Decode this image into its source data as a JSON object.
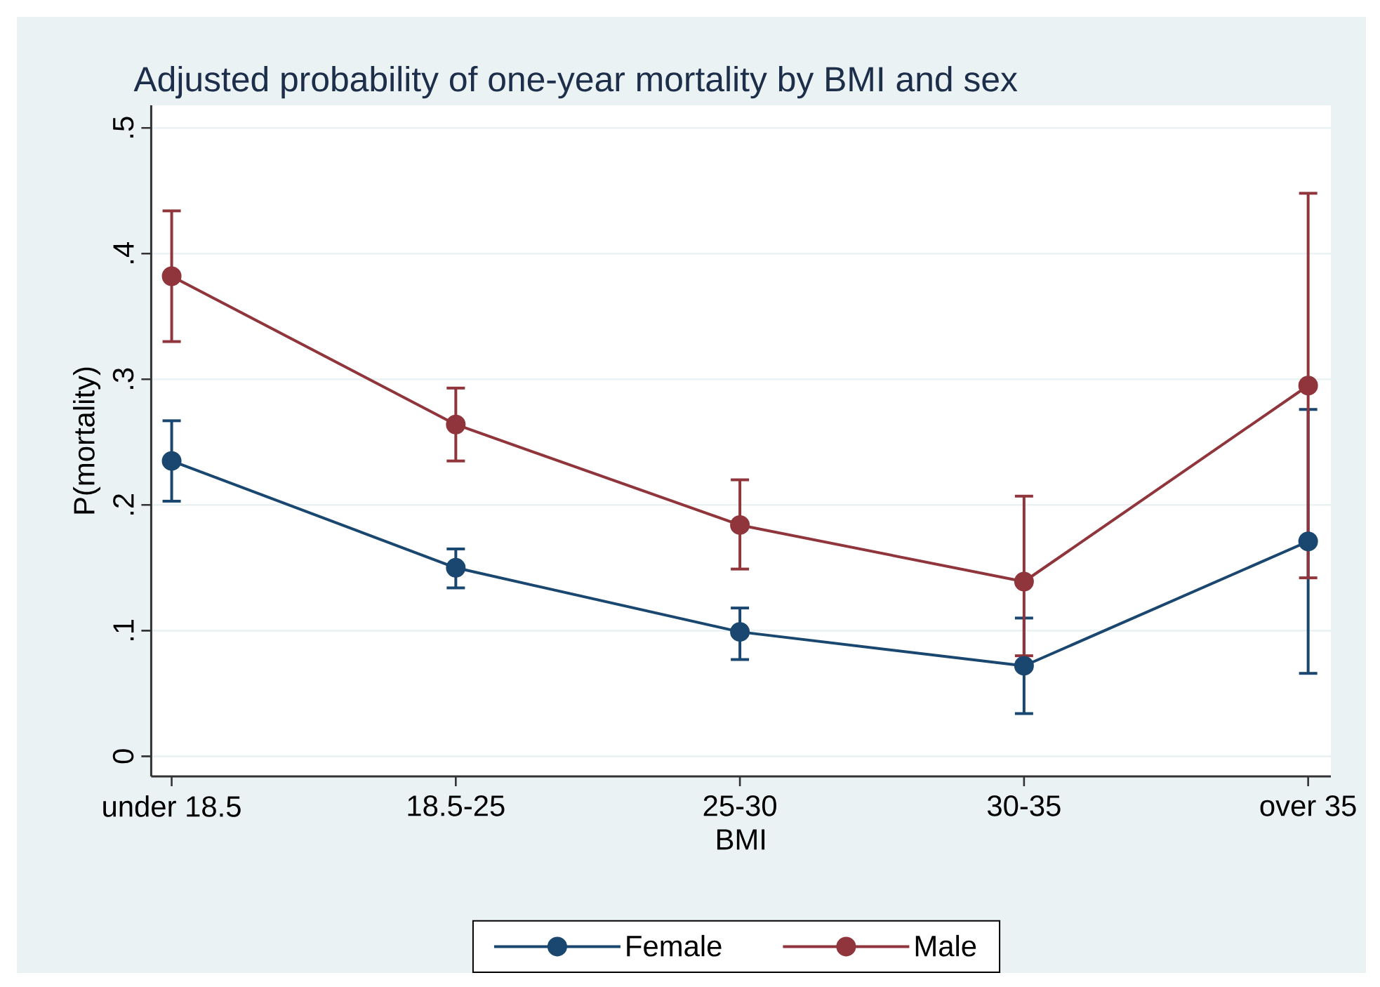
{
  "chart_data": {
    "type": "line",
    "title": "Adjusted probability of one-year mortality by BMI and sex",
    "xlabel": "BMI",
    "ylabel": "P(mortality)",
    "categories": [
      "under 18.5",
      "18.5-25",
      "25-30",
      "30-35",
      "over 35"
    ],
    "series": [
      {
        "name": "Female",
        "color": "#1a476f",
        "values": [
          0.235,
          0.15,
          0.099,
          0.072,
          0.171
        ],
        "errors": [
          [
            0.203,
            0.267
          ],
          [
            0.134,
            0.165
          ],
          [
            0.077,
            0.118
          ],
          [
            0.034,
            0.11
          ],
          [
            0.066,
            0.276
          ]
        ]
      },
      {
        "name": "Male",
        "color": "#90353b",
        "values": [
          0.382,
          0.264,
          0.184,
          0.139,
          0.295
        ],
        "errors": [
          [
            0.33,
            0.434
          ],
          [
            0.235,
            0.293
          ],
          [
            0.149,
            0.22
          ],
          [
            0.08,
            0.207
          ],
          [
            0.142,
            0.448
          ]
        ]
      }
    ],
    "ylim": [
      -0.016,
      0.518
    ],
    "yticks": [
      {
        "value": 0,
        "label": "0"
      },
      {
        "value": 0.1,
        "label": ".1"
      },
      {
        "value": 0.2,
        "label": ".2"
      },
      {
        "value": 0.3,
        "label": ".3"
      },
      {
        "value": 0.4,
        "label": ".4"
      },
      {
        "value": 0.5,
        "label": ".5"
      }
    ],
    "grid": "y",
    "legend": "bottom",
    "marker": "circle",
    "line_style": "solid"
  }
}
